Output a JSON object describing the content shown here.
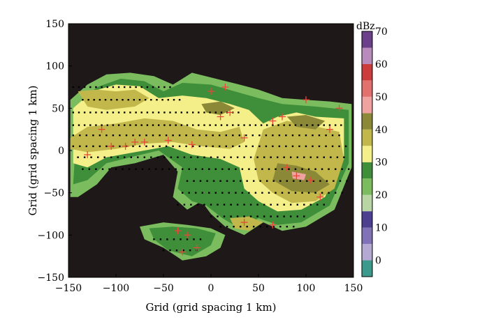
{
  "chart_data": {
    "type": "heatmap",
    "title": "",
    "xlabel": "Grid (grid spacing 1 km)",
    "ylabel": "Grid (grid spacing 1 km)",
    "xlim": [
      -150,
      150
    ],
    "ylim": [
      -150,
      150
    ],
    "xticks": [
      -150,
      -100,
      -50,
      0,
      50,
      100,
      150
    ],
    "yticks": [
      -150,
      -100,
      -50,
      0,
      50,
      100,
      150
    ],
    "background_color": "#1e1918",
    "colorbar": {
      "unit": "dBz",
      "range": [
        -5,
        70
      ],
      "tick_values": [
        0,
        10,
        20,
        30,
        40,
        50,
        60,
        70
      ],
      "bands": [
        {
          "from": -5,
          "to": 0,
          "color": "#3b9a8c"
        },
        {
          "from": 0,
          "to": 5,
          "color": "#b3a9d3"
        },
        {
          "from": 5,
          "to": 10,
          "color": "#7f72b6"
        },
        {
          "from": 10,
          "to": 15,
          "color": "#4d3f8f"
        },
        {
          "from": 15,
          "to": 20,
          "color": "#b7d6a4"
        },
        {
          "from": 20,
          "to": 25,
          "color": "#7bbd5e"
        },
        {
          "from": 25,
          "to": 30,
          "color": "#3f8e3a"
        },
        {
          "from": 30,
          "to": 35,
          "color": "#f5ef8a"
        },
        {
          "from": 35,
          "to": 40,
          "color": "#c2b74b"
        },
        {
          "from": 40,
          "to": 45,
          "color": "#8b8838"
        },
        {
          "from": 45,
          "to": 50,
          "color": "#f0a2a0"
        },
        {
          "from": 50,
          "to": 55,
          "color": "#e2716d"
        },
        {
          "from": 55,
          "to": 60,
          "color": "#cc3c3c"
        },
        {
          "from": 60,
          "to": 65,
          "color": "#b98bbd"
        },
        {
          "from": 65,
          "to": 70,
          "color": "#6b3f8a"
        }
      ]
    },
    "echo_regions": [
      {
        "dbz": 20,
        "points": [
          [
            -148,
            60
          ],
          [
            -130,
            78
          ],
          [
            -110,
            90
          ],
          [
            -85,
            92
          ],
          [
            -60,
            88
          ],
          [
            -40,
            78
          ],
          [
            -20,
            92
          ],
          [
            5,
            85
          ],
          [
            30,
            78
          ],
          [
            50,
            72
          ],
          [
            75,
            62
          ],
          [
            100,
            60
          ],
          [
            125,
            58
          ],
          [
            148,
            55
          ],
          [
            148,
            -20
          ],
          [
            130,
            -70
          ],
          [
            100,
            -90
          ],
          [
            75,
            -95
          ],
          [
            55,
            -85
          ],
          [
            35,
            -100
          ],
          [
            15,
            -90
          ],
          [
            0,
            -75
          ],
          [
            -10,
            -60
          ],
          [
            -25,
            -70
          ],
          [
            -40,
            -55
          ],
          [
            -35,
            -25
          ],
          [
            -50,
            -5
          ],
          [
            -80,
            -15
          ],
          [
            -105,
            -20
          ],
          [
            -120,
            -40
          ],
          [
            -140,
            -55
          ],
          [
            -148,
            -55
          ]
        ]
      },
      {
        "dbz": 20,
        "points": [
          [
            -75,
            -90
          ],
          [
            -50,
            -85
          ],
          [
            -25,
            -88
          ],
          [
            0,
            -92
          ],
          [
            15,
            -100
          ],
          [
            10,
            -115
          ],
          [
            -5,
            -125
          ],
          [
            -30,
            -130
          ],
          [
            -50,
            -115
          ],
          [
            -70,
            -105
          ]
        ]
      },
      {
        "dbz": 25,
        "points": [
          [
            -140,
            55
          ],
          [
            -120,
            75
          ],
          [
            -95,
            85
          ],
          [
            -70,
            82
          ],
          [
            -50,
            70
          ],
          [
            -30,
            80
          ],
          [
            0,
            78
          ],
          [
            25,
            70
          ],
          [
            50,
            62
          ],
          [
            75,
            55
          ],
          [
            110,
            52
          ],
          [
            145,
            48
          ],
          [
            145,
            -15
          ],
          [
            125,
            -65
          ],
          [
            95,
            -85
          ],
          [
            70,
            -88
          ],
          [
            50,
            -80
          ],
          [
            30,
            -92
          ],
          [
            12,
            -80
          ],
          [
            -5,
            -65
          ],
          [
            -20,
            -60
          ],
          [
            -35,
            -45
          ],
          [
            -30,
            -20
          ],
          [
            -55,
            0
          ],
          [
            -85,
            -8
          ],
          [
            -110,
            -15
          ],
          [
            -130,
            -35
          ],
          [
            -145,
            -40
          ]
        ]
      },
      {
        "dbz": 25,
        "points": [
          [
            -65,
            -92
          ],
          [
            -40,
            -90
          ],
          [
            -15,
            -92
          ],
          [
            5,
            -98
          ],
          [
            0,
            -112
          ],
          [
            -20,
            -125
          ],
          [
            -45,
            -118
          ],
          [
            -60,
            -105
          ]
        ]
      },
      {
        "dbz": 30,
        "points": [
          [
            -145,
            50
          ],
          [
            -125,
            70
          ],
          [
            -100,
            78
          ],
          [
            -75,
            76
          ],
          [
            -55,
            62
          ],
          [
            -30,
            65
          ],
          [
            -5,
            62
          ],
          [
            20,
            55
          ],
          [
            40,
            48
          ],
          [
            55,
            32
          ],
          [
            70,
            40
          ],
          [
            90,
            45
          ],
          [
            110,
            40
          ],
          [
            140,
            38
          ],
          [
            140,
            -10
          ],
          [
            120,
            -55
          ],
          [
            95,
            -70
          ],
          [
            70,
            -72
          ],
          [
            50,
            -60
          ],
          [
            35,
            -45
          ],
          [
            30,
            -20
          ],
          [
            10,
            -10
          ],
          [
            -20,
            -5
          ],
          [
            -45,
            5
          ],
          [
            -80,
            -2
          ],
          [
            -110,
            -8
          ],
          [
            -130,
            -20
          ],
          [
            -145,
            -15
          ]
        ]
      },
      {
        "dbz": 35,
        "points": [
          [
            -148,
            15
          ],
          [
            -130,
            28
          ],
          [
            -100,
            32
          ],
          [
            -70,
            38
          ],
          [
            -40,
            35
          ],
          [
            -15,
            25
          ],
          [
            10,
            22
          ],
          [
            30,
            28
          ],
          [
            35,
            10
          ],
          [
            20,
            2
          ],
          [
            -10,
            5
          ],
          [
            -40,
            10
          ],
          [
            -70,
            8
          ],
          [
            -100,
            2
          ],
          [
            -130,
            -2
          ],
          [
            -148,
            2
          ]
        ]
      },
      {
        "dbz": 35,
        "points": [
          [
            -140,
            70
          ],
          [
            -120,
            72
          ],
          [
            -100,
            70
          ],
          [
            -80,
            72
          ],
          [
            -65,
            62
          ],
          [
            -80,
            52
          ],
          [
            -110,
            48
          ],
          [
            -130,
            52
          ]
        ]
      },
      {
        "dbz": 35,
        "points": [
          [
            55,
            25
          ],
          [
            80,
            35
          ],
          [
            105,
            30
          ],
          [
            135,
            22
          ],
          [
            140,
            -10
          ],
          [
            130,
            -45
          ],
          [
            110,
            -60
          ],
          [
            85,
            -62
          ],
          [
            65,
            -50
          ],
          [
            50,
            -35
          ],
          [
            45,
            -10
          ]
        ]
      },
      {
        "dbz": 35,
        "points": [
          [
            20,
            -80
          ],
          [
            40,
            -78
          ],
          [
            55,
            -85
          ],
          [
            40,
            -95
          ],
          [
            25,
            -92
          ]
        ]
      },
      {
        "dbz": 40,
        "points": [
          [
            70,
            -15
          ],
          [
            90,
            -18
          ],
          [
            110,
            -25
          ],
          [
            125,
            -40
          ],
          [
            110,
            -50
          ],
          [
            85,
            -48
          ],
          [
            65,
            -35
          ]
        ]
      },
      {
        "dbz": 40,
        "points": [
          [
            80,
            40
          ],
          [
            100,
            42
          ],
          [
            120,
            35
          ],
          [
            110,
            25
          ],
          [
            90,
            28
          ]
        ]
      },
      {
        "dbz": 40,
        "points": [
          [
            -10,
            55
          ],
          [
            10,
            58
          ],
          [
            25,
            50
          ],
          [
            10,
            42
          ],
          [
            -5,
            45
          ]
        ]
      },
      {
        "dbz": 45,
        "points": [
          [
            85,
            -25
          ],
          [
            100,
            -28
          ],
          [
            98,
            -35
          ],
          [
            86,
            -33
          ]
        ]
      }
    ],
    "markers": {
      "crosses": [
        [
          -115,
          25
        ],
        [
          -105,
          5
        ],
        [
          -90,
          5
        ],
        [
          -80,
          10
        ],
        [
          -130,
          -5
        ],
        [
          -70,
          10
        ],
        [
          -45,
          12
        ],
        [
          -20,
          7
        ],
        [
          0,
          70
        ],
        [
          15,
          75
        ],
        [
          20,
          45
        ],
        [
          10,
          40
        ],
        [
          35,
          15
        ],
        [
          65,
          35
        ],
        [
          75,
          40
        ],
        [
          100,
          60
        ],
        [
          125,
          25
        ],
        [
          135,
          50
        ],
        [
          80,
          -20
        ],
        [
          90,
          -30
        ],
        [
          105,
          -35
        ],
        [
          115,
          -55
        ],
        [
          35,
          -85
        ],
        [
          65,
          -88
        ],
        [
          -25,
          -100
        ],
        [
          -30,
          -120
        ],
        [
          -15,
          -115
        ],
        [
          -35,
          -95
        ]
      ],
      "dot_rows": [
        {
          "x_start": -145,
          "x_end": -40,
          "y": 75,
          "step": 6
        },
        {
          "x_start": -135,
          "x_end": -30,
          "y": 60,
          "step": 6
        },
        {
          "x_start": -145,
          "x_end": 30,
          "y": 45,
          "step": 6
        },
        {
          "x_start": -145,
          "x_end": 140,
          "y": 30,
          "step": 6
        },
        {
          "x_start": -145,
          "x_end": 140,
          "y": 18,
          "step": 7
        },
        {
          "x_start": -145,
          "x_end": 145,
          "y": 5,
          "step": 7
        },
        {
          "x_start": -140,
          "x_end": 145,
          "y": -8,
          "step": 7
        },
        {
          "x_start": -135,
          "x_end": 145,
          "y": -22,
          "step": 7
        },
        {
          "x_start": -25,
          "x_end": 145,
          "y": -36,
          "step": 7
        },
        {
          "x_start": -30,
          "x_end": 140,
          "y": -50,
          "step": 7
        },
        {
          "x_start": -35,
          "x_end": 125,
          "y": -64,
          "step": 7
        },
        {
          "x_start": 0,
          "x_end": 100,
          "y": -78,
          "step": 7
        },
        {
          "x_start": 10,
          "x_end": 90,
          "y": -90,
          "step": 7
        },
        {
          "x_start": -60,
          "x_end": -5,
          "y": -105,
          "step": 7
        },
        {
          "x_start": -50,
          "x_end": -10,
          "y": -118,
          "step": 7
        }
      ]
    }
  }
}
